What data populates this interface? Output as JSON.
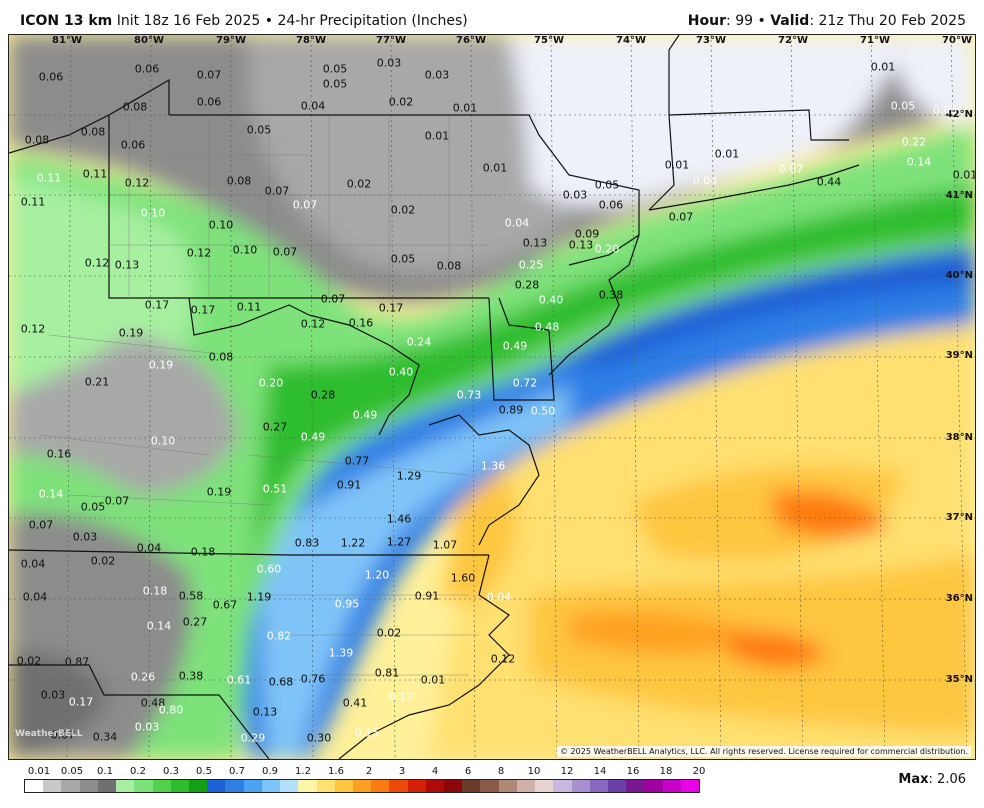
{
  "header": {
    "model": "ICON 13 km",
    "init": "Init 18z 16 Feb 2025",
    "product": "24-hr Precipitation (Inches)",
    "hour_label": "Hour",
    "hour": "99",
    "valid_label": "Valid",
    "valid": "21z Thu 20 Feb 2025"
  },
  "longitudes": [
    "81°W",
    "80°W",
    "79°W",
    "78°W",
    "77°W",
    "76°W",
    "75°W",
    "74°W",
    "73°W",
    "72°W",
    "71°W",
    "70°W"
  ],
  "latitudes": [
    "42°N",
    "41°N",
    "40°N",
    "39°N",
    "38°N",
    "37°N",
    "36°N",
    "35°N"
  ],
  "values": [
    "0.06",
    "0.06",
    "0.07",
    "0.05",
    "0.05",
    "0.03",
    "0.03",
    "0.01",
    "0.08",
    "0.06",
    "0.04",
    "0.02",
    "0.01",
    "0.08",
    "0.08",
    "0.06",
    "0.05",
    "0.01",
    "0.05",
    "0.03",
    "0.11",
    "0.11",
    "0.12",
    "0.08",
    "0.07",
    "0.02",
    "0.01",
    "0.01",
    "0.01",
    "0.07",
    "0.04",
    "0.44",
    "0.11",
    "0.10",
    "0.07",
    "0.02",
    "0.03",
    "0.05",
    "0.06",
    "0.07",
    "0.10",
    "0.12",
    "0.10",
    "0.12",
    "0.13",
    "0.07",
    "0.04",
    "0.09",
    "0.13",
    "0.20",
    "0.05",
    "0.08",
    "0.25",
    "0.13",
    "0.28",
    "0.40",
    "0.38",
    "0.17",
    "0.17",
    "0.11",
    "0.07",
    "0.17",
    "0.12",
    "0.16",
    "0.48",
    "0.12",
    "0.19",
    "0.24",
    "0.49",
    "0.19",
    "0.08",
    "0.40",
    "0.21",
    "0.20",
    "0.72",
    "0.28",
    "0.73",
    "0.89",
    "0.50",
    "0.49",
    "0.10",
    "0.27",
    "0.49",
    "0.16",
    "0.77",
    "1.36",
    "1.29",
    "0.91",
    "0.14",
    "0.19",
    "0.51",
    "0.07",
    "0.05",
    "1.46",
    "0.07",
    "0.03",
    "0.04",
    "0.18",
    "0.83",
    "1.22",
    "1.27",
    "1.07",
    "0.04",
    "0.02",
    "0.60",
    "1.20",
    "1.60",
    "0.04",
    "0.18",
    "0.58",
    "1.19",
    "0.95",
    "0.91",
    "0.04",
    "0.14",
    "0.27",
    "0.67",
    "0.82",
    "0.02",
    "0.87",
    "1.39",
    "0.12",
    "0.26",
    "0.38",
    "0.61",
    "0.68",
    "0.76",
    "0.81",
    "0.01",
    "0.03",
    "0.17",
    "0.48",
    "0.17",
    "0.80",
    "0.41",
    "0.13",
    "0.03",
    "0.07",
    "0.34",
    "0.29",
    "0.30",
    "0.15",
    "0.14",
    "0.22",
    "0.01",
    "0.02"
  ],
  "copyright": "© 2025 WeatherBELL Analytics, LLC. All rights reserved. License required for commercial distribution.",
  "logo": "WeatherBELL",
  "scale": {
    "labels": [
      "0.01",
      "0.05",
      "0.1",
      "0.2",
      "0.3",
      "0.5",
      "0.7",
      "0.9",
      "1.2",
      "1.6",
      "2",
      "3",
      "4",
      "6",
      "8",
      "10",
      "12",
      "14",
      "16",
      "18",
      "20"
    ],
    "colors": [
      "#ffffff",
      "#c8c8c8",
      "#a8a8a8",
      "#8c8c8c",
      "#707070",
      "#a6f0a0",
      "#7ee27a",
      "#52d24c",
      "#2ebd2e",
      "#14a014",
      "#1c5fd6",
      "#2f7fe6",
      "#4aa2f0",
      "#7fc4f8",
      "#b0e0fb",
      "#fff5a8",
      "#ffe070",
      "#ffc640",
      "#ffa020",
      "#ff7a10",
      "#f04a0a",
      "#d42008",
      "#b00a08",
      "#8a0808",
      "#6a3a2a",
      "#8c5a48",
      "#b08878",
      "#d0b0a8",
      "#e8d4d0",
      "#c8b8e0",
      "#a890d0",
      "#8a68c0",
      "#6a40a8",
      "#7a1890",
      "#a000a0",
      "#c800c8",
      "#e800e8"
    ],
    "max_label": "Max",
    "max_value": "2.06"
  }
}
